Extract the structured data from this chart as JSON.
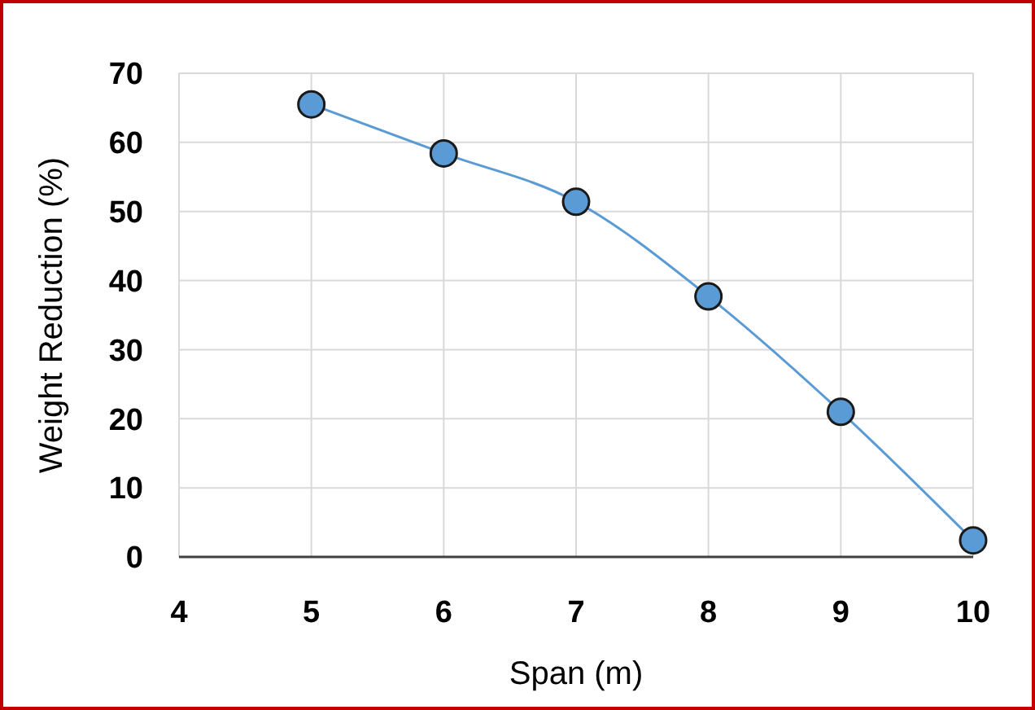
{
  "chart_data": {
    "type": "line",
    "xlabel": "Span (m)",
    "ylabel": "Weight Reduction (%)",
    "x": [
      5,
      6,
      7,
      8,
      9,
      10
    ],
    "series": [
      {
        "color": "#5b9bd5",
        "values": [
          65.5,
          58.4,
          51.4,
          37.7,
          21,
          2.4
        ]
      }
    ],
    "xlim": [
      4,
      10
    ],
    "xticks": [
      4,
      5,
      6,
      7,
      8,
      9,
      10
    ],
    "ylim": [
      0,
      70
    ],
    "yticks": [
      0,
      10,
      20,
      30,
      40,
      50,
      60,
      70
    ],
    "grid": true,
    "marker": "circle",
    "line_style": "solid"
  }
}
